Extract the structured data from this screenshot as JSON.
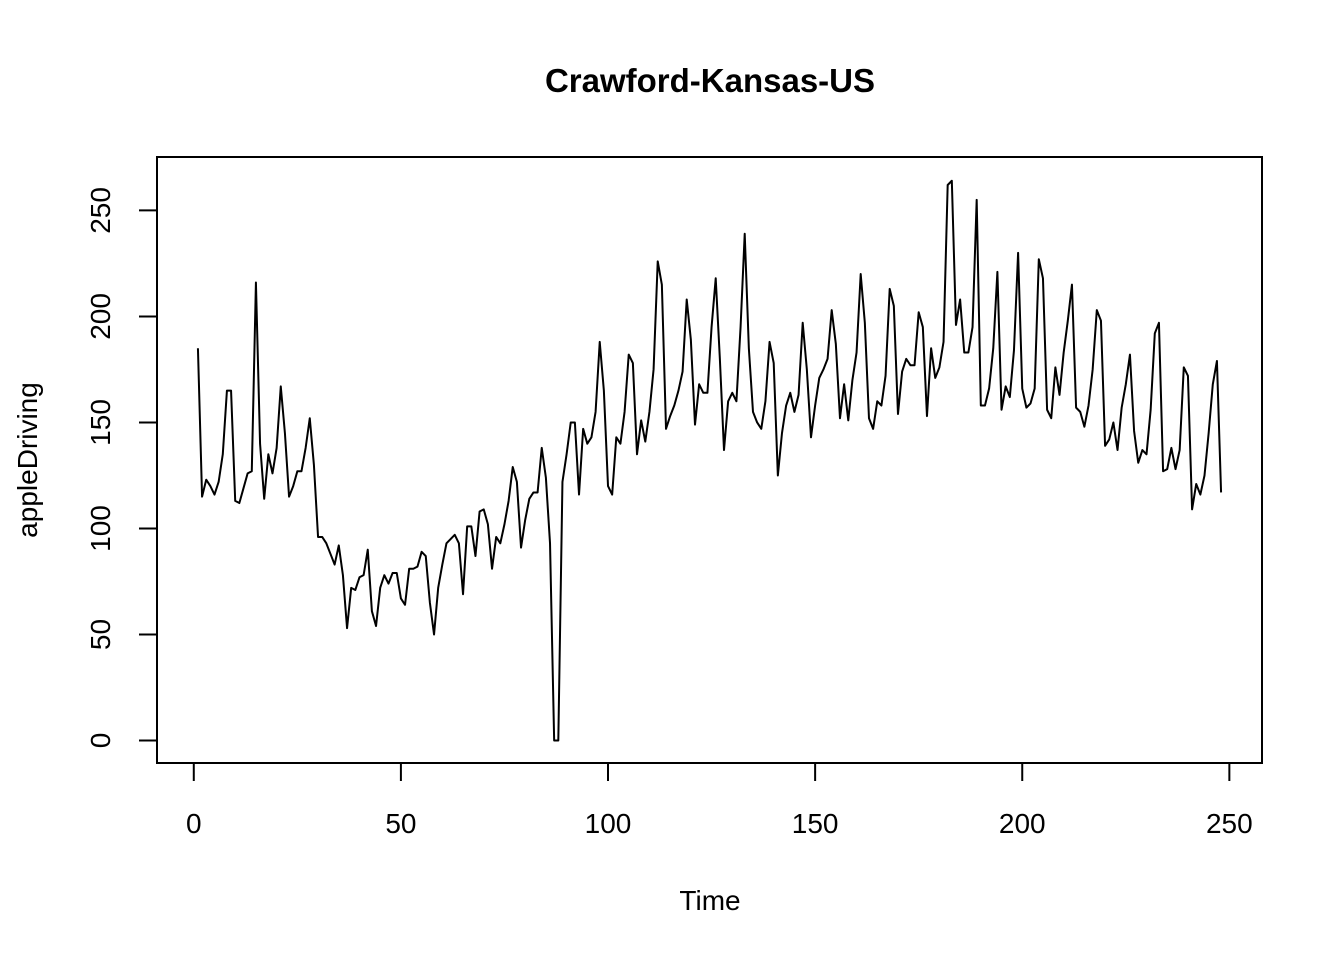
{
  "chart_data": {
    "type": "line",
    "title": "Crawford-Kansas-US",
    "x_label": "Time",
    "y_label": "appleDriving",
    "color": "#000000",
    "xlim": [
      -8.88,
      257.88
    ],
    "ylim": [
      -10.6,
      275.2
    ],
    "xticks": [
      0,
      50,
      100,
      150,
      200,
      250
    ],
    "yticks": [
      0,
      50,
      100,
      150,
      200,
      250
    ],
    "x": [
      1,
      2,
      3,
      4,
      5,
      6,
      7,
      8,
      9,
      10,
      11,
      12,
      13,
      14,
      15,
      16,
      17,
      18,
      19,
      20,
      21,
      22,
      23,
      24,
      25,
      26,
      27,
      28,
      29,
      30,
      31,
      32,
      33,
      34,
      35,
      36,
      37,
      38,
      39,
      40,
      41,
      42,
      43,
      44,
      45,
      46,
      47,
      48,
      49,
      50,
      51,
      52,
      53,
      54,
      55,
      56,
      57,
      58,
      59,
      60,
      61,
      62,
      63,
      64,
      65,
      66,
      67,
      68,
      69,
      70,
      71,
      72,
      73,
      74,
      75,
      76,
      77,
      78,
      79,
      80,
      81,
      82,
      83,
      84,
      85,
      86,
      87,
      88,
      89,
      90,
      91,
      92,
      93,
      94,
      95,
      96,
      97,
      98,
      99,
      100,
      101,
      102,
      103,
      104,
      105,
      106,
      107,
      108,
      109,
      110,
      111,
      112,
      113,
      114,
      115,
      116,
      117,
      118,
      119,
      120,
      121,
      122,
      123,
      124,
      125,
      126,
      127,
      128,
      129,
      130,
      131,
      132,
      133,
      134,
      135,
      136,
      137,
      138,
      139,
      140,
      141,
      142,
      143,
      144,
      145,
      146,
      147,
      148,
      149,
      150,
      151,
      152,
      153,
      154,
      155,
      156,
      157,
      158,
      159,
      160,
      161,
      162,
      163,
      164,
      165,
      166,
      167,
      168,
      169,
      170,
      171,
      172,
      173,
      174,
      175,
      176,
      177,
      178,
      179,
      180,
      181,
      182,
      183,
      184,
      185,
      186,
      187,
      188,
      189,
      190,
      191,
      192,
      193,
      194,
      195,
      196,
      197,
      198,
      199,
      200,
      201,
      202,
      203,
      204,
      205,
      206,
      207,
      208,
      209,
      210,
      211,
      212,
      213,
      214,
      215,
      216,
      217,
      218,
      219,
      220,
      221,
      222,
      223,
      224,
      225,
      226,
      227,
      228,
      229,
      230,
      231,
      232,
      233,
      234,
      235,
      236,
      237,
      238,
      239,
      240,
      241,
      242,
      243,
      244,
      245,
      246,
      247,
      248
    ],
    "values": [
      185,
      115,
      123,
      120,
      116,
      122,
      135,
      165,
      165,
      113,
      112,
      119,
      126,
      127,
      216,
      140,
      114,
      135,
      126,
      138,
      167,
      145,
      115,
      120,
      127,
      127,
      138,
      152,
      130,
      96,
      96,
      93,
      88,
      83,
      92,
      78,
      53,
      72,
      71,
      77,
      78,
      90,
      61,
      54,
      72,
      78,
      74,
      79,
      79,
      67,
      64,
      81,
      81,
      82,
      89,
      87,
      65,
      50,
      72,
      83,
      93,
      95,
      97,
      93,
      69,
      101,
      101,
      87,
      108,
      109,
      102,
      81,
      96,
      93,
      102,
      113,
      129,
      122,
      91,
      104,
      114,
      117,
      117,
      138,
      124,
      93,
      0,
      0,
      122,
      135,
      150,
      150,
      116,
      147,
      140,
      143,
      155,
      188,
      165,
      120,
      116,
      143,
      140,
      155,
      182,
      178,
      135,
      151,
      141,
      155,
      175,
      226,
      215,
      147,
      153,
      158,
      165,
      174,
      208,
      189,
      149,
      168,
      164,
      164,
      195,
      218,
      180,
      137,
      160,
      164,
      160,
      195,
      239,
      185,
      155,
      150,
      147,
      160,
      188,
      178,
      125,
      145,
      158,
      164,
      155,
      163,
      197,
      175,
      143,
      158,
      171,
      175,
      180,
      203,
      187,
      152,
      168,
      151,
      170,
      183,
      220,
      197,
      152,
      147,
      160,
      158,
      172,
      213,
      205,
      154,
      174,
      180,
      177,
      177,
      202,
      195,
      153,
      185,
      171,
      176,
      188,
      262,
      264,
      196,
      208,
      183,
      183,
      195,
      255,
      158,
      158,
      166,
      185,
      221,
      156,
      167,
      162,
      184,
      230,
      166,
      157,
      159,
      166,
      227,
      218,
      156,
      152,
      176,
      163,
      183,
      198,
      215,
      157,
      155,
      148,
      158,
      175,
      203,
      198,
      139,
      142,
      150,
      137,
      157,
      168,
      182,
      146,
      131,
      137,
      135,
      156,
      192,
      197,
      127,
      128,
      138,
      128,
      137,
      176,
      172,
      109,
      121,
      116,
      125,
      145,
      168,
      179,
      117
    ]
  }
}
